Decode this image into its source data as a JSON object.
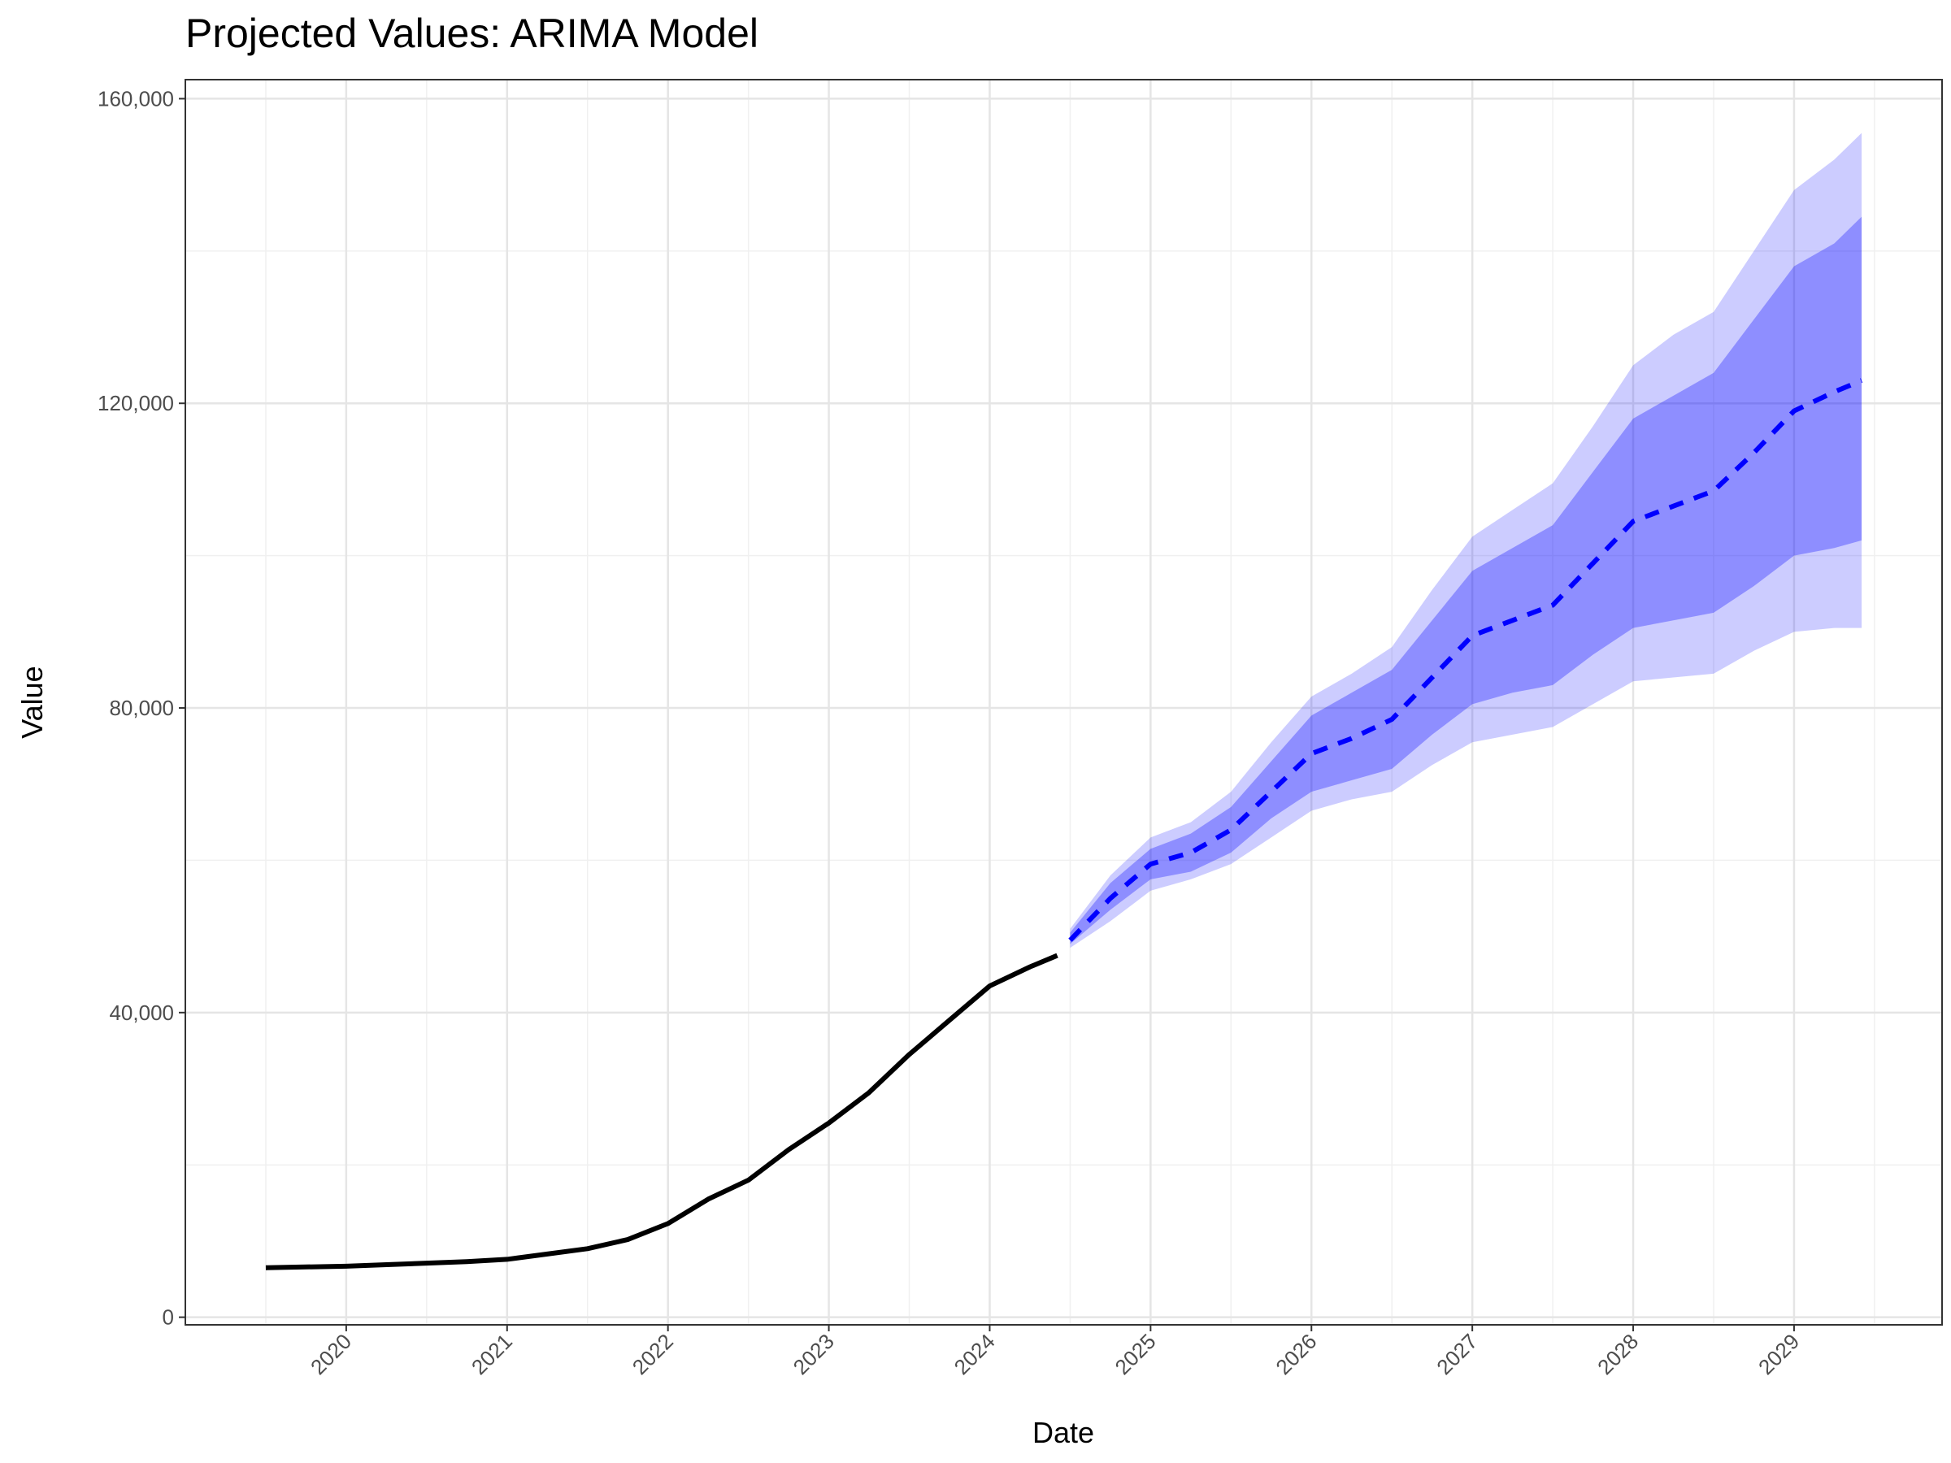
{
  "chart_data": {
    "type": "line",
    "title": "Projected Values: ARIMA Model",
    "x_label": "Date",
    "y_label": "Value",
    "xlim": [
      2019.0,
      2029.92
    ],
    "ylim": [
      -1000,
      162500
    ],
    "xticks": [
      2020,
      2021,
      2022,
      2023,
      2024,
      2025,
      2026,
      2027,
      2028,
      2029
    ],
    "xminor": [
      2019.5,
      2020.5,
      2021.5,
      2022.5,
      2023.5,
      2024.5,
      2025.5,
      2026.5,
      2027.5,
      2028.5,
      2029.5
    ],
    "yticks": [
      0,
      {
        "value": 40000,
        "label": "40,000"
      },
      {
        "value": 80000,
        "label": "80,000"
      },
      {
        "value": 120000,
        "label": "120,000"
      },
      {
        "value": 160000,
        "label": "160,000"
      }
    ],
    "yminor": [
      20000,
      60000,
      100000,
      140000
    ],
    "grid": true,
    "series": [
      {
        "color": "#000000",
        "dashed": false,
        "x": [
          2019.5,
          2019.75,
          2020.0,
          2020.25,
          2020.5,
          2020.75,
          2021.0,
          2021.25,
          2021.5,
          2021.75,
          2022.0,
          2022.25,
          2022.5,
          2022.75,
          2023.0,
          2023.25,
          2023.5,
          2023.75,
          2024.0,
          2024.25,
          2024.42
        ],
        "values": [
          6500,
          6600,
          6700,
          6900,
          7100,
          7300,
          7600,
          8300,
          9000,
          10200,
          12300,
          15500,
          18000,
          22000,
          25500,
          29500,
          34500,
          39000,
          43500,
          46000,
          47500
        ]
      },
      {
        "color": "#0000ff",
        "dashed": true,
        "x": [
          2024.5,
          2024.75,
          2025.0,
          2025.25,
          2025.5,
          2025.75,
          2026.0,
          2026.25,
          2026.5,
          2026.75,
          2027.0,
          2027.25,
          2027.5,
          2027.75,
          2028.0,
          2028.25,
          2028.5,
          2028.75,
          2029.0,
          2029.25,
          2029.42
        ],
        "values": [
          49500,
          55000,
          59500,
          61000,
          64000,
          69000,
          74000,
          76000,
          78500,
          84000,
          89500,
          91500,
          93500,
          99000,
          104500,
          106500,
          108500,
          113500,
          119000,
          121500,
          123000
        ],
        "bands": [
          {
            "color": "#0000ff",
            "opacity": 0.2,
            "lower": [
              48500,
              52000,
              56000,
              57500,
              59500,
              63000,
              66500,
              68000,
              69000,
              72500,
              75500,
              76500,
              77500,
              80500,
              83500,
              84000,
              84500,
              87500,
              90000,
              90500,
              90500
            ],
            "upper": [
              51000,
              58000,
              63000,
              65000,
              69000,
              75500,
              81500,
              84500,
              88000,
              95500,
              102500,
              106000,
              109500,
              117000,
              125000,
              129000,
              132000,
              140000,
              148000,
              152000,
              155500
            ]
          },
          {
            "color": "#0000ff",
            "opacity": 0.3,
            "lower": [
              49000,
              53500,
              57500,
              58500,
              61000,
              65500,
              69000,
              70500,
              72000,
              76500,
              80500,
              82000,
              83000,
              87000,
              90500,
              91500,
              92500,
              96000,
              100000,
              101000,
              102000
            ],
            "upper": [
              50500,
              57000,
              61500,
              63500,
              67000,
              73000,
              79000,
              82000,
              85000,
              91500,
              98000,
              101000,
              104000,
              111000,
              118000,
              121000,
              124000,
              131000,
              138000,
              141000,
              144500
            ]
          }
        ]
      }
    ]
  }
}
